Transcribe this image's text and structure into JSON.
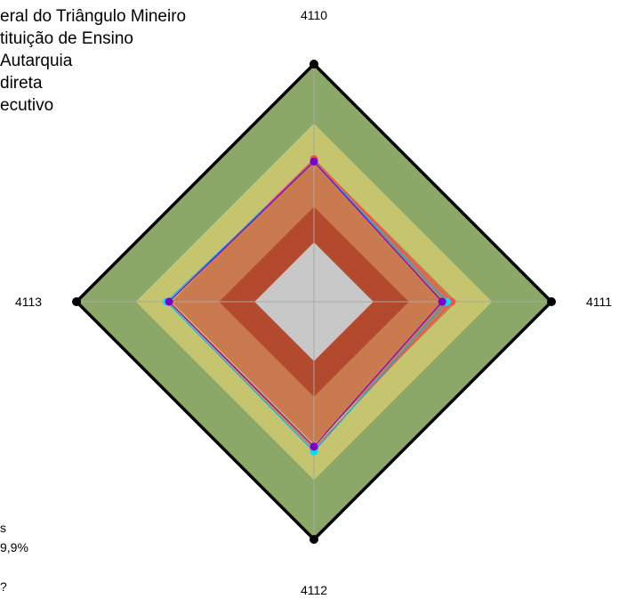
{
  "legend": {
    "lines": [
      "eral do Triângulo Mineiro",
      "tituição de Ensino",
      " Autarquia",
      "direta",
      "ecutivo"
    ]
  },
  "side_text": {
    "line1": "s",
    "line2": "9,9%",
    "line3": "?"
  },
  "chart_data": {
    "type": "radar",
    "axes": [
      "4110",
      "4111",
      "4112",
      "4113"
    ],
    "bands": [
      {
        "outer": 0.25,
        "color": "#c8c8c8"
      },
      {
        "outer": 0.4,
        "color": "#b34a2e"
      },
      {
        "outer": 0.6,
        "color": "#c97b4f"
      },
      {
        "outer": 0.75,
        "color": "#c5c56f"
      },
      {
        "outer": 1.0,
        "color": "#8ca868"
      }
    ],
    "series": [
      {
        "color": "#ff4a4a",
        "marker_color": "#ff4a4a",
        "values": [
          0.6,
          0.58,
          0.62,
          0.61
        ]
      },
      {
        "color": "#00b0f0",
        "marker_color": "#00e0ff",
        "values": [
          0.59,
          0.56,
          0.63,
          0.62
        ]
      },
      {
        "color": "#7a00d0",
        "marker_color": "#7a00d0",
        "values": [
          0.59,
          0.54,
          0.61,
          0.61
        ]
      }
    ],
    "rmax": 1.0
  }
}
